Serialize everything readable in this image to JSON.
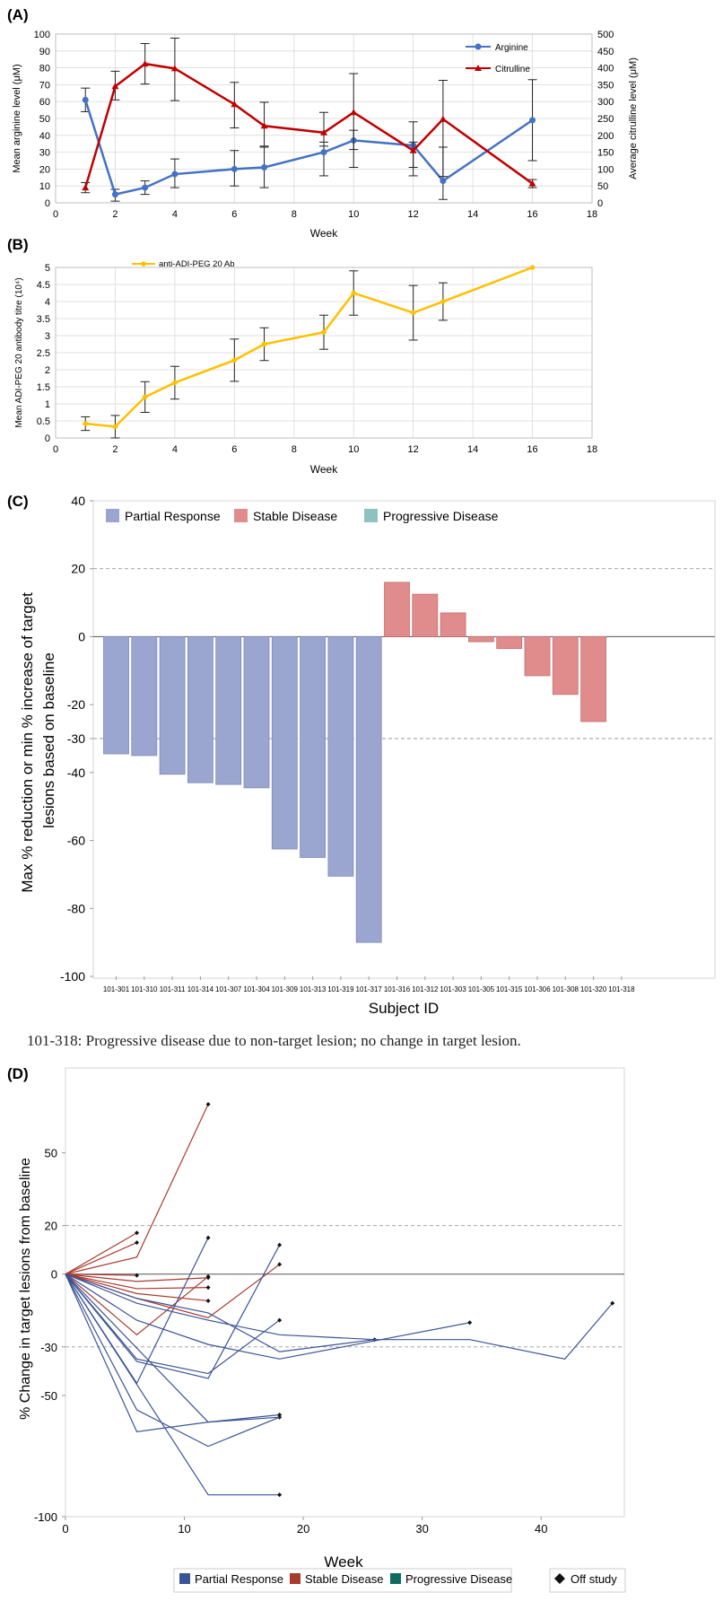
{
  "colors": {
    "arginine": "#4472C4",
    "citrulline": "#C00000",
    "antibody": "#FFC000",
    "partial_response": "#9AA6CF",
    "stable_disease": "#E08C8C",
    "progressive_disease": "#8CC3BF",
    "d_partial_response": "#3B5496",
    "d_stable_disease": "#A93A2E",
    "d_progressive_disease": "#0F6B62"
  },
  "note": "101-318: Progressive disease due to non-target lesion;  no change in target lesion.",
  "chart_data": [
    {
      "panel": "(A)",
      "type": "line",
      "xlabel": "Week",
      "ylabel": "Mean arginine level (μM)",
      "y2label": "Average citrulline level (μM)",
      "xlim": [
        0,
        18
      ],
      "ylim": [
        0,
        100
      ],
      "y2lim": [
        0,
        500
      ],
      "xticks": [
        "0",
        "2",
        "4",
        "6",
        "8",
        "10",
        "12",
        "14",
        "16",
        "18"
      ],
      "yticks": [
        "0",
        "10",
        "20",
        "30",
        "40",
        "50",
        "60",
        "70",
        "80",
        "90",
        "100"
      ],
      "y2ticks": [
        "0",
        "50",
        "100",
        "150",
        "200",
        "250",
        "300",
        "350",
        "400",
        "450",
        "500"
      ],
      "grid": true,
      "legend": "top-right",
      "series": [
        {
          "name": "Arginine",
          "axis": "left",
          "x": [
            1,
            2,
            3,
            4,
            6,
            7,
            9,
            10,
            12,
            13,
            16
          ],
          "y": [
            61,
            5,
            9,
            17,
            20,
            21,
            30,
            37,
            34,
            13,
            49
          ],
          "err_lo": [
            7,
            4,
            4,
            8,
            10,
            12,
            14,
            16,
            13,
            11,
            24
          ],
          "err_hi": [
            7,
            3,
            4,
            9,
            11,
            12,
            6,
            6,
            2,
            20,
            24
          ]
        },
        {
          "name": "Citrulline",
          "axis": "right",
          "x": [
            1,
            2,
            3,
            4,
            6,
            7,
            9,
            10,
            12,
            13,
            16
          ],
          "y": [
            45,
            345,
            412,
            398,
            292,
            228,
            208,
            268,
            155,
            248,
            57
          ],
          "err_lo": [
            15,
            40,
            60,
            95,
            70,
            60,
            40,
            110,
            75,
            170,
            12
          ],
          "err_hi": [
            15,
            45,
            60,
            90,
            65,
            70,
            60,
            115,
            85,
            115,
            12
          ]
        }
      ]
    },
    {
      "panel": "(B)",
      "type": "line",
      "xlabel": "Week",
      "ylabel": "Mean ADI-PEG 20 antibody titre (10⁴)",
      "xlim": [
        0,
        18
      ],
      "ylim": [
        0,
        5
      ],
      "xticks": [
        "0",
        "2",
        "4",
        "6",
        "8",
        "10",
        "12",
        "14",
        "16",
        "18"
      ],
      "yticks": [
        "0",
        "0.5",
        "1",
        "1.5",
        "2",
        "2.5",
        "3",
        "3.5",
        "4",
        "4.5",
        "5"
      ],
      "grid": true,
      "legend": "top-left",
      "series": [
        {
          "name": "anti-ADI-PEG 20 Ab",
          "x": [
            1,
            2,
            3,
            4,
            6,
            7,
            9,
            10,
            12,
            13,
            16
          ],
          "y": [
            0.42,
            0.33,
            1.2,
            1.62,
            2.28,
            2.75,
            3.1,
            4.25,
            3.67,
            4.0,
            5.0
          ],
          "err": [
            0.2,
            0.33,
            0.45,
            0.48,
            0.62,
            0.48,
            0.5,
            0.65,
            0.8,
            0.55,
            0
          ]
        }
      ]
    },
    {
      "panel": "(C)",
      "type": "bar",
      "xlabel": "Subject ID",
      "ylabel": "Max % reduction or min % increase of target lesions based on baseline",
      "ylim": [
        -100,
        40
      ],
      "yticks": [
        "-100",
        "-80",
        "-60",
        "-40",
        "-30",
        "-20",
        "0",
        "20",
        "40"
      ],
      "reference_lines": [
        20,
        -30
      ],
      "legend": "top-left",
      "legend_entries": [
        "Partial Response",
        "Stable Disease",
        "Progressive Disease"
      ],
      "categories": [
        "101-301",
        "101-310",
        "101-311",
        "101-314",
        "101-307",
        "101-304",
        "101-309",
        "101-313",
        "101-319",
        "101-317",
        "101-316",
        "101-312",
        "101-303",
        "101-305",
        "101-315",
        "101-306",
        "101-308",
        "101-320",
        "101-318"
      ],
      "values": [
        -34.5,
        -35,
        -40.5,
        -43,
        -43.5,
        -44.5,
        -62.5,
        -65,
        -70.5,
        -90,
        16,
        12.5,
        7,
        -1.5,
        -3.5,
        -11.5,
        -17,
        -25,
        0
      ],
      "groups": [
        "PR",
        "PR",
        "PR",
        "PR",
        "PR",
        "PR",
        "PR",
        "PR",
        "PR",
        "PR",
        "SD",
        "SD",
        "SD",
        "SD",
        "SD",
        "SD",
        "SD",
        "SD",
        "PD"
      ]
    },
    {
      "panel": "(D)",
      "type": "line",
      "xlabel": "Week",
      "ylabel": "% Change in target lesions from baseline",
      "xlim": [
        0,
        47
      ],
      "ylim": [
        -100,
        85
      ],
      "xticks": [
        "0",
        "10",
        "20",
        "30",
        "40"
      ],
      "yticks": [
        "-100",
        "-50",
        "-30",
        "0",
        "20",
        "50"
      ],
      "reference_lines": [
        20,
        -30
      ],
      "legend": "bottom",
      "legend_entries": [
        "Partial Response",
        "Stable Disease",
        "Progressive Disease",
        "Off study"
      ],
      "series": [
        {
          "group": "SD",
          "x": [
            0,
            6,
            12
          ],
          "y": [
            0,
            7,
            70
          ],
          "off": true
        },
        {
          "group": "SD",
          "x": [
            0,
            6
          ],
          "y": [
            0,
            17
          ],
          "off": true
        },
        {
          "group": "SD",
          "x": [
            0,
            6
          ],
          "y": [
            0,
            13
          ],
          "off": true
        },
        {
          "group": "SD",
          "x": [
            0,
            6
          ],
          "y": [
            0,
            -0.5
          ],
          "off": true
        },
        {
          "group": "SD",
          "x": [
            0,
            6,
            12
          ],
          "y": [
            0,
            -3,
            -1.5
          ],
          "off": true
        },
        {
          "group": "SD",
          "x": [
            0,
            6,
            12
          ],
          "y": [
            0,
            -6,
            -5.5
          ],
          "off": true
        },
        {
          "group": "SD",
          "x": [
            0,
            6,
            12
          ],
          "y": [
            0,
            -8,
            -11
          ],
          "off": true
        },
        {
          "group": "SD",
          "x": [
            0,
            6,
            12,
            18
          ],
          "y": [
            0,
            -10,
            -18,
            4
          ],
          "off": true
        },
        {
          "group": "SD",
          "x": [
            0,
            6,
            12
          ],
          "y": [
            0,
            -25,
            -1
          ],
          "off": true
        },
        {
          "group": "PR",
          "x": [
            0,
            6,
            12
          ],
          "y": [
            0,
            -45,
            15
          ],
          "off": true
        },
        {
          "group": "PR",
          "x": [
            0,
            6,
            12,
            18
          ],
          "y": [
            0,
            -36,
            -43,
            12
          ],
          "off": true
        },
        {
          "group": "PR",
          "x": [
            0,
            6,
            12,
            18
          ],
          "y": [
            0,
            -35,
            -41,
            -19
          ],
          "off": true
        },
        {
          "group": "PR",
          "x": [
            0,
            12,
            18
          ],
          "y": [
            0,
            -61,
            -58
          ],
          "off": true
        },
        {
          "group": "PR",
          "x": [
            0,
            6,
            12,
            18
          ],
          "y": [
            0,
            -56,
            -71,
            -59
          ],
          "off": true
        },
        {
          "group": "PR",
          "x": [
            0,
            6,
            12,
            18
          ],
          "y": [
            0,
            -65,
            -61,
            -59
          ],
          "off": false
        },
        {
          "group": "PR",
          "x": [
            0,
            12,
            18
          ],
          "y": [
            0,
            -91,
            -91
          ],
          "off": true
        },
        {
          "group": "PR",
          "x": [
            0,
            6,
            12,
            18,
            26
          ],
          "y": [
            0,
            -12,
            -19,
            -25,
            -27
          ],
          "off": true
        },
        {
          "group": "PR",
          "x": [
            0,
            6,
            12,
            18,
            34
          ],
          "y": [
            0,
            -19,
            -29,
            -35,
            -20
          ],
          "off": true
        },
        {
          "group": "PR",
          "x": [
            0,
            6,
            12,
            18,
            26,
            34,
            42,
            46
          ],
          "y": [
            0,
            -10,
            -16,
            -32,
            -27,
            -27,
            -35,
            -12
          ],
          "off": true
        }
      ]
    }
  ]
}
